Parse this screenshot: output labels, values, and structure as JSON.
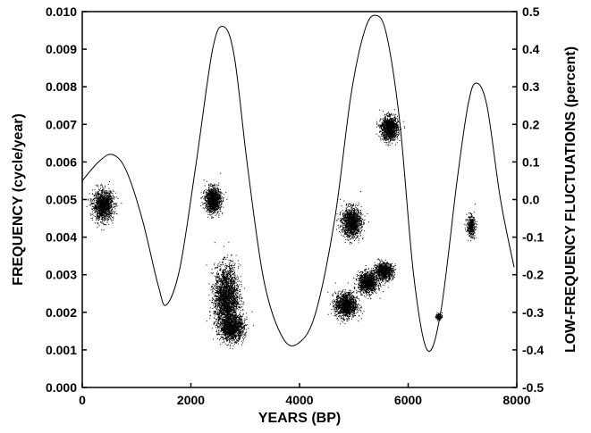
{
  "chart_data": {
    "type": "scatter",
    "xlabel": "YEARS (BP)",
    "ylabel": "FREQUENCY (cycle/year)",
    "y2label": "LOW-FREQUENCY FLUCTUATIONS (percent)",
    "xlim": [
      0,
      8000
    ],
    "ylim": [
      0.0,
      0.01
    ],
    "y2lim": [
      -0.5,
      0.5
    ],
    "x_ticks": [
      "0",
      "2000",
      "4000",
      "6000",
      "8000"
    ],
    "x_tick_values": [
      0,
      2000,
      4000,
      6000,
      8000
    ],
    "y_ticks": [
      "0.000",
      "0.001",
      "0.002",
      "0.003",
      "0.004",
      "0.005",
      "0.006",
      "0.007",
      "0.008",
      "0.009",
      "0.010"
    ],
    "y_tick_values": [
      0.0,
      0.001,
      0.002,
      0.003,
      0.004,
      0.005,
      0.006,
      0.007,
      0.008,
      0.009,
      0.01
    ],
    "y2_ticks": [
      "-0.5",
      "-0.4",
      "-0.3",
      "-0.2",
      "-0.1",
      "0.0",
      "0.1",
      "0.2",
      "0.3",
      "0.4",
      "0.5"
    ],
    "y2_tick_values": [
      -0.5,
      -0.4,
      -0.3,
      -0.2,
      -0.1,
      0.0,
      0.1,
      0.2,
      0.3,
      0.4,
      0.5
    ],
    "grid": false,
    "point_color": "#000000",
    "curve_color": "#000000",
    "clusters": [
      {
        "x_center": 380,
        "y_center": 0.00485,
        "x_spread": 170,
        "y_spread": 0.00035,
        "density": 1.0
      },
      {
        "x_center": 2400,
        "y_center": 0.005,
        "x_spread": 130,
        "y_spread": 0.0003,
        "density": 0.9
      },
      {
        "x_center": 2650,
        "y_center": 0.0024,
        "x_spread": 200,
        "y_spread": 0.00075,
        "density": 1.8
      },
      {
        "x_center": 2750,
        "y_center": 0.0016,
        "x_spread": 200,
        "y_spread": 0.0003,
        "density": 1.0
      },
      {
        "x_center": 4950,
        "y_center": 0.0044,
        "x_spread": 160,
        "y_spread": 0.00035,
        "density": 1.0
      },
      {
        "x_center": 4850,
        "y_center": 0.0022,
        "x_spread": 180,
        "y_spread": 0.0003,
        "density": 1.0
      },
      {
        "x_center": 5250,
        "y_center": 0.0028,
        "x_spread": 160,
        "y_spread": 0.00025,
        "density": 0.8
      },
      {
        "x_center": 5550,
        "y_center": 0.0031,
        "x_spread": 150,
        "y_spread": 0.0002,
        "density": 0.7
      },
      {
        "x_center": 5650,
        "y_center": 0.0069,
        "x_spread": 140,
        "y_spread": 0.00028,
        "density": 0.9
      },
      {
        "x_center": 7150,
        "y_center": 0.0043,
        "x_spread": 70,
        "y_spread": 0.00025,
        "density": 0.3
      },
      {
        "x_center": 6560,
        "y_center": 0.0019,
        "x_spread": 50,
        "y_spread": 8e-05,
        "density": 0.08
      }
    ],
    "fluctuation_curve": {
      "x": [
        0,
        300,
        550,
        800,
        1100,
        1400,
        1550,
        1800,
        2100,
        2400,
        2600,
        2800,
        3050,
        3350,
        3700,
        4000,
        4300,
        4650,
        4950,
        5200,
        5400,
        5600,
        5850,
        6100,
        6350,
        6600,
        6900,
        7100,
        7250,
        7450,
        7700,
        7950
      ],
      "y": [
        0.05,
        0.1,
        0.12,
        0.08,
        -0.05,
        -0.23,
        -0.28,
        -0.18,
        0.1,
        0.4,
        0.46,
        0.38,
        0.08,
        -0.22,
        -0.37,
        -0.38,
        -0.3,
        -0.05,
        0.28,
        0.45,
        0.49,
        0.44,
        0.2,
        -0.2,
        -0.4,
        -0.3,
        0.05,
        0.25,
        0.31,
        0.25,
        0.0,
        -0.18
      ]
    }
  }
}
